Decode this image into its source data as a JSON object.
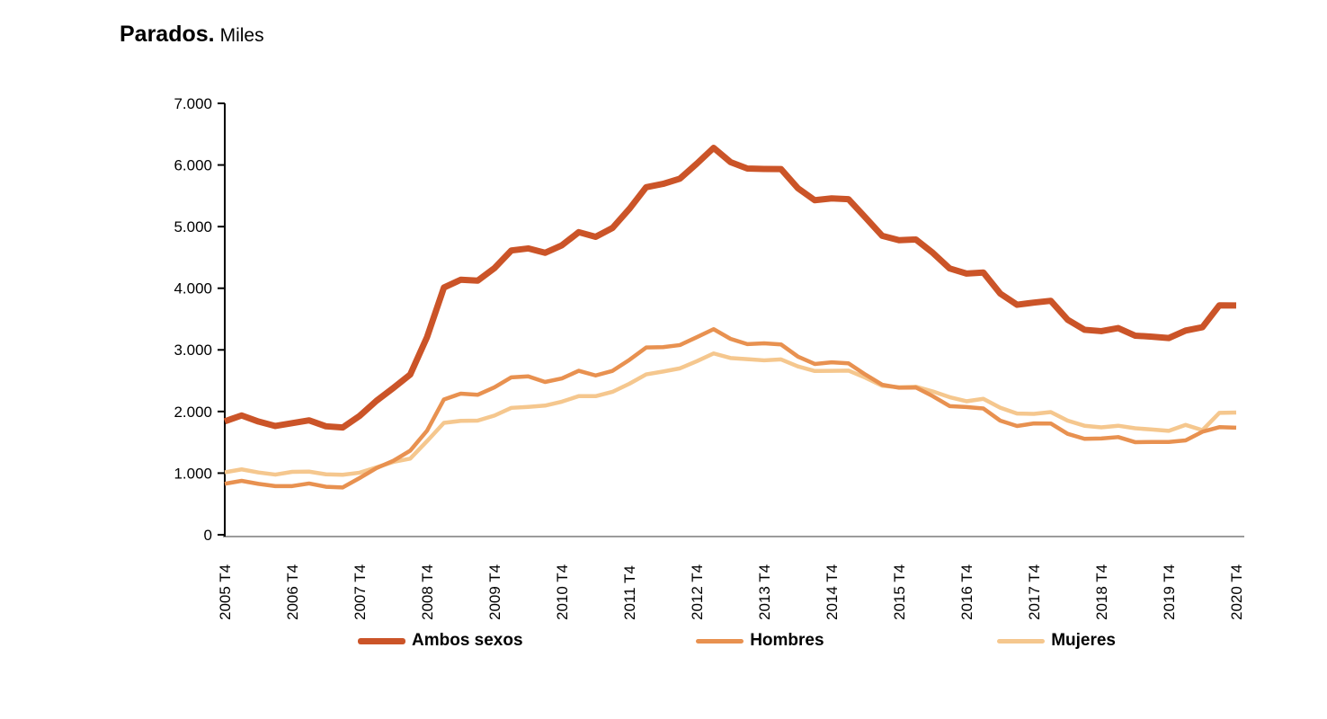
{
  "title": {
    "bold": "Parados.",
    "regular": "Miles"
  },
  "colors": {
    "ambos_sexos": "#CB5428",
    "hombres": "#E89150",
    "mujeres": "#F5C78E",
    "y_axis": "#000000",
    "x_axis_line": "#9B9B9B",
    "tick_text": "#000000"
  },
  "legend": {
    "items": [
      {
        "label": "Ambos sexos",
        "color": "#CB5428",
        "thickness": 7
      },
      {
        "label": "Hombres",
        "color": "#E89150",
        "thickness": 5
      },
      {
        "label": "Mujeres",
        "color": "#F5C78E",
        "thickness": 5
      }
    ]
  },
  "chart_data": {
    "type": "line",
    "title": "Parados. Miles",
    "ylabel": "",
    "xlabel": "",
    "ylim": [
      0,
      7000
    ],
    "y_tick_labels": [
      "0",
      "1.000",
      "2.000",
      "3.000",
      "4.000",
      "5.000",
      "6.000",
      "7.000"
    ],
    "y_tick_values": [
      0,
      1000,
      2000,
      3000,
      4000,
      5000,
      6000,
      7000
    ],
    "x_tick_labels": [
      "2005 T4",
      "2006 T4",
      "2007 T4",
      "2008 T4",
      "2009 T4",
      "2010 T4",
      "2011 T4",
      "2012 T4",
      "2013 T4",
      "2014 T4",
      "2015 T4",
      "2016 T4",
      "2017 T4",
      "2018 T4",
      "2019 T4",
      "2020 T4"
    ],
    "x_tick_every": 4,
    "grid": false,
    "legend_position": "bottom",
    "x": [
      "2005 T4",
      "2006 T1",
      "2006 T2",
      "2006 T3",
      "2006 T4",
      "2007 T1",
      "2007 T2",
      "2007 T3",
      "2007 T4",
      "2008 T1",
      "2008 T2",
      "2008 T3",
      "2008 T4",
      "2009 T1",
      "2009 T2",
      "2009 T3",
      "2009 T4",
      "2010 T1",
      "2010 T2",
      "2010 T3",
      "2010 T4",
      "2011 T1",
      "2011 T2",
      "2011 T3",
      "2011 T4",
      "2012 T1",
      "2012 T2",
      "2012 T3",
      "2012 T4",
      "2013 T1",
      "2013 T2",
      "2013 T3",
      "2013 T4",
      "2014 T1",
      "2014 T2",
      "2014 T3",
      "2014 T4",
      "2015 T1",
      "2015 T2",
      "2015 T3",
      "2015 T4",
      "2016 T1",
      "2016 T2",
      "2016 T3",
      "2016 T4",
      "2017 T1",
      "2017 T2",
      "2017 T3",
      "2017 T4",
      "2018 T1",
      "2018 T2",
      "2018 T3",
      "2018 T4",
      "2019 T1",
      "2019 T2",
      "2019 T3",
      "2019 T4",
      "2020 T1",
      "2020 T2",
      "2020 T3",
      "2020 T4"
    ],
    "series": [
      {
        "name": "Ambos sexos",
        "color": "#CB5428",
        "stroke_width": 7,
        "values": [
          1841,
          1936,
          1837,
          1765,
          1811,
          1856,
          1760,
          1741,
          1928,
          2174,
          2382,
          2599,
          3208,
          4011,
          4138,
          4123,
          4327,
          4613,
          4646,
          4575,
          4697,
          4910,
          4834,
          4978,
          5287,
          5640,
          5693,
          5778,
          6021,
          6278,
          6047,
          5943,
          5936,
          5933,
          5623,
          5428,
          5458,
          5445,
          5149,
          4851,
          4780,
          4791,
          4575,
          4321,
          4238,
          4255,
          3914,
          3732,
          3767,
          3796,
          3490,
          3326,
          3304,
          3354,
          3231,
          3214,
          3192,
          3313,
          3368,
          3723,
          3720
        ]
      },
      {
        "name": "Hombres",
        "color": "#E89150",
        "stroke_width": 4.5,
        "values": [
          828,
          875,
          826,
          789,
          790,
          832,
          779,
          768,
          921,
          1081,
          1200,
          1364,
          1689,
          2195,
          2290,
          2271,
          2393,
          2554,
          2571,
          2479,
          2537,
          2661,
          2585,
          2659,
          2837,
          3038,
          3044,
          3078,
          3206,
          3336,
          3179,
          3093,
          3106,
          3088,
          2891,
          2771,
          2798,
          2781,
          2600,
          2434,
          2386,
          2389,
          2249,
          2088,
          2072,
          2049,
          1852,
          1765,
          1806,
          1805,
          1638,
          1557,
          1562,
          1585,
          1503,
          1506,
          1506,
          1531,
          1672,
          1746,
          1737
        ]
      },
      {
        "name": "Mujeres",
        "color": "#F5C78E",
        "stroke_width": 4.5,
        "values": [
          1013,
          1061,
          1011,
          976,
          1021,
          1024,
          981,
          973,
          1007,
          1093,
          1182,
          1235,
          1519,
          1816,
          1848,
          1852,
          1934,
          2059,
          2075,
          2096,
          2160,
          2249,
          2249,
          2319,
          2450,
          2602,
          2649,
          2700,
          2815,
          2942,
          2868,
          2850,
          2830,
          2845,
          2732,
          2657,
          2660,
          2664,
          2549,
          2417,
          2394,
          2402,
          2326,
          2233,
          2166,
          2206,
          2062,
          1967,
          1961,
          1991,
          1852,
          1769,
          1742,
          1769,
          1728,
          1708,
          1686,
          1782,
          1697,
          1977,
          1983
        ]
      }
    ]
  }
}
